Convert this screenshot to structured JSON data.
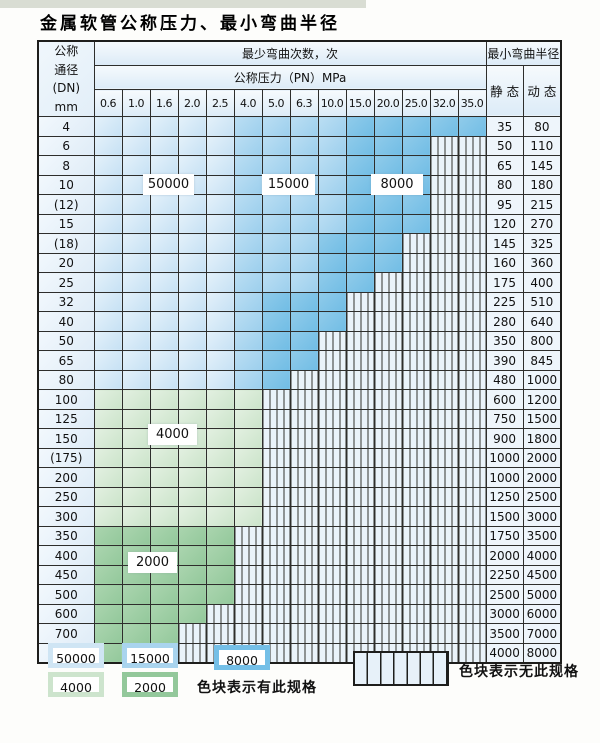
{
  "title": "金属软管公称压力、最小弯曲半径",
  "table": {
    "dn_header": [
      "公称",
      "通径",
      "(DN)",
      "mm"
    ],
    "cycles_header": "最少弯曲次数，次",
    "pressure_header": "公称压力（PN）MPa",
    "radius_header": "最小弯曲半径",
    "static_header": "静 态",
    "dynamic_header": "动 态",
    "pressures": [
      "0.6",
      "1.0",
      "1.6",
      "2.0",
      "2.5",
      "4.0",
      "5.0",
      "6.3",
      "10.0",
      "15.0",
      "20.0",
      "25.0",
      "32.0",
      "35.0"
    ],
    "rows": [
      {
        "dn": "4",
        "bands": [
          [
            "b50",
            5
          ],
          [
            "b15",
            4
          ],
          [
            "b8",
            5
          ]
        ],
        "static": "35",
        "dynamic": "80"
      },
      {
        "dn": "6",
        "bands": [
          [
            "b50",
            5
          ],
          [
            "b15",
            4
          ],
          [
            "b8",
            3
          ],
          [
            "none",
            2
          ]
        ],
        "static": "50",
        "dynamic": "110"
      },
      {
        "dn": "8",
        "bands": [
          [
            "b50",
            5
          ],
          [
            "b15",
            4
          ],
          [
            "b8",
            3
          ],
          [
            "none",
            2
          ]
        ],
        "static": "65",
        "dynamic": "145"
      },
      {
        "dn": "10",
        "bands": [
          [
            "b50",
            5
          ],
          [
            "b15",
            4
          ],
          [
            "b8",
            3
          ],
          [
            "none",
            2
          ]
        ],
        "static": "80",
        "dynamic": "180"
      },
      {
        "dn": "(12)",
        "bands": [
          [
            "b50",
            5
          ],
          [
            "b15",
            4
          ],
          [
            "b8",
            3
          ],
          [
            "none",
            2
          ]
        ],
        "static": "95",
        "dynamic": "215"
      },
      {
        "dn": "15",
        "bands": [
          [
            "b50",
            5
          ],
          [
            "b15",
            4
          ],
          [
            "b8",
            3
          ],
          [
            "none",
            2
          ]
        ],
        "static": "120",
        "dynamic": "270"
      },
      {
        "dn": "(18)",
        "bands": [
          [
            "b50",
            5
          ],
          [
            "b15",
            3
          ],
          [
            "b8",
            3
          ],
          [
            "none",
            3
          ]
        ],
        "static": "145",
        "dynamic": "325"
      },
      {
        "dn": "20",
        "bands": [
          [
            "b50",
            5
          ],
          [
            "b15",
            3
          ],
          [
            "b8",
            3
          ],
          [
            "none",
            3
          ]
        ],
        "static": "160",
        "dynamic": "360"
      },
      {
        "dn": "25",
        "bands": [
          [
            "b50",
            5
          ],
          [
            "b15",
            3
          ],
          [
            "b8",
            2
          ],
          [
            "none",
            4
          ]
        ],
        "static": "175",
        "dynamic": "400"
      },
      {
        "dn": "32",
        "bands": [
          [
            "b50",
            5
          ],
          [
            "b15",
            1
          ],
          [
            "b8",
            3
          ],
          [
            "none",
            5
          ]
        ],
        "static": "225",
        "dynamic": "510"
      },
      {
        "dn": "40",
        "bands": [
          [
            "b50",
            5
          ],
          [
            "b15",
            1
          ],
          [
            "b8",
            3
          ],
          [
            "none",
            5
          ]
        ],
        "static": "280",
        "dynamic": "640"
      },
      {
        "dn": "50",
        "bands": [
          [
            "b50",
            5
          ],
          [
            "b15",
            1
          ],
          [
            "b8",
            2
          ],
          [
            "none",
            6
          ]
        ],
        "static": "350",
        "dynamic": "800"
      },
      {
        "dn": "65",
        "bands": [
          [
            "b50",
            5
          ],
          [
            "b15",
            1
          ],
          [
            "b8",
            2
          ],
          [
            "none",
            6
          ]
        ],
        "static": "390",
        "dynamic": "845"
      },
      {
        "dn": "80",
        "bands": [
          [
            "b50",
            5
          ],
          [
            "b15",
            1
          ],
          [
            "b8",
            1
          ],
          [
            "none",
            7
          ]
        ],
        "static": "480",
        "dynamic": "1000"
      },
      {
        "dn": "100",
        "bands": [
          [
            "b4",
            6
          ],
          [
            "none",
            8
          ]
        ],
        "static": "600",
        "dynamic": "1200"
      },
      {
        "dn": "125",
        "bands": [
          [
            "b4",
            6
          ],
          [
            "none",
            8
          ]
        ],
        "static": "750",
        "dynamic": "1500"
      },
      {
        "dn": "150",
        "bands": [
          [
            "b4",
            6
          ],
          [
            "none",
            8
          ]
        ],
        "static": "900",
        "dynamic": "1800"
      },
      {
        "dn": "(175)",
        "bands": [
          [
            "b4",
            6
          ],
          [
            "none",
            8
          ]
        ],
        "static": "1000",
        "dynamic": "2000"
      },
      {
        "dn": "200",
        "bands": [
          [
            "b4",
            6
          ],
          [
            "none",
            8
          ]
        ],
        "static": "1000",
        "dynamic": "2000"
      },
      {
        "dn": "250",
        "bands": [
          [
            "b4",
            6
          ],
          [
            "none",
            8
          ]
        ],
        "static": "1250",
        "dynamic": "2500"
      },
      {
        "dn": "300",
        "bands": [
          [
            "b4",
            6
          ],
          [
            "none",
            8
          ]
        ],
        "static": "1500",
        "dynamic": "3000"
      },
      {
        "dn": "350",
        "bands": [
          [
            "b2",
            5
          ],
          [
            "none",
            9
          ]
        ],
        "static": "1750",
        "dynamic": "3500"
      },
      {
        "dn": "400",
        "bands": [
          [
            "b2",
            5
          ],
          [
            "none",
            9
          ]
        ],
        "static": "2000",
        "dynamic": "4000"
      },
      {
        "dn": "450",
        "bands": [
          [
            "b2",
            5
          ],
          [
            "none",
            9
          ]
        ],
        "static": "2250",
        "dynamic": "4500"
      },
      {
        "dn": "500",
        "bands": [
          [
            "b2",
            5
          ],
          [
            "none",
            9
          ]
        ],
        "static": "2500",
        "dynamic": "5000"
      },
      {
        "dn": "600",
        "bands": [
          [
            "b2",
            4
          ],
          [
            "none",
            10
          ]
        ],
        "static": "3000",
        "dynamic": "6000"
      },
      {
        "dn": "700",
        "bands": [
          [
            "b2",
            3
          ],
          [
            "none",
            11
          ]
        ],
        "static": "3500",
        "dynamic": "7000"
      },
      {
        "dn": "800",
        "bands": [
          [
            "b2",
            3
          ],
          [
            "none",
            11
          ]
        ],
        "static": "4000",
        "dynamic": "8000"
      }
    ]
  },
  "overlays": [
    {
      "id": "ov-50000",
      "text": "50000"
    },
    {
      "id": "ov-15000",
      "text": "15000"
    },
    {
      "id": "ov-8000",
      "text": "8000"
    },
    {
      "id": "ov-4000",
      "text": "4000"
    },
    {
      "id": "ov-2000",
      "text": "2000"
    }
  ],
  "legend": {
    "has_spec_items": [
      {
        "id": "lg-50000",
        "value": "50000",
        "border": "#cfe5f4"
      },
      {
        "id": "lg-15000",
        "value": "15000",
        "border": "#a9d4ee"
      },
      {
        "id": "lg-8000",
        "value": "8000",
        "border": "#74bfe7"
      },
      {
        "id": "lg-4000",
        "value": "4000",
        "border": "#cde4cd"
      },
      {
        "id": "lg-2000",
        "value": "2000",
        "border": "#93c89b"
      }
    ],
    "has_spec_text": "色块表示有此规格",
    "no_spec_text": "色块表示无此规格"
  },
  "colors": {
    "band_50000": "#cde5f5",
    "band_15000": "#a6d4ee",
    "band_8000": "#7cc2e7",
    "band_4000": "#d5e8d4",
    "band_2000": "#9ecf9f",
    "striped_bg": "#eaf3fa",
    "grid_line": "#2e2e2c",
    "header_bg": "#dcebf7"
  }
}
